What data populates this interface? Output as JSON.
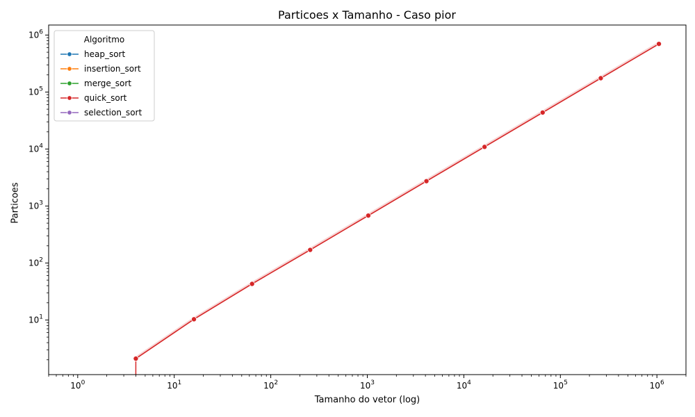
{
  "chart_data": {
    "type": "line",
    "title": "Particoes x Tamanho - Caso pior",
    "xlabel": "Tamanho do vetor (log)",
    "ylabel": "Particoes",
    "xscale": "log",
    "yscale": "log",
    "xlim": [
      0.5,
      2000000
    ],
    "ylim": [
      1.1,
      1500000
    ],
    "xticks": [
      {
        "value": 1,
        "base": "10",
        "exp": "0"
      },
      {
        "value": 10,
        "base": "10",
        "exp": "1"
      },
      {
        "value": 100,
        "base": "10",
        "exp": "2"
      },
      {
        "value": 1000,
        "base": "10",
        "exp": "3"
      },
      {
        "value": 10000,
        "base": "10",
        "exp": "4"
      },
      {
        "value": 100000,
        "base": "10",
        "exp": "5"
      },
      {
        "value": 1000000,
        "base": "10",
        "exp": "6"
      }
    ],
    "yticks": [
      {
        "value": 10,
        "base": "10",
        "exp": "1"
      },
      {
        "value": 100,
        "base": "10",
        "exp": "2"
      },
      {
        "value": 1000,
        "base": "10",
        "exp": "3"
      },
      {
        "value": 10000,
        "base": "10",
        "exp": "4"
      },
      {
        "value": 100000,
        "base": "10",
        "exp": "5"
      },
      {
        "value": 1000000,
        "base": "10",
        "exp": "6"
      }
    ],
    "grid": false,
    "legend": {
      "title": "Algoritmo",
      "position": "top-left"
    },
    "series": [
      {
        "name": "heap_sort",
        "color": "#1f77b4",
        "x": [],
        "y": []
      },
      {
        "name": "insertion_sort",
        "color": "#ff7f0e",
        "x": [],
        "y": []
      },
      {
        "name": "merge_sort",
        "color": "#2ca02c",
        "x": [],
        "y": []
      },
      {
        "name": "quick_sort",
        "color": "#d62728",
        "x": [
          4,
          16,
          64,
          256,
          1024,
          4096,
          16384,
          65536,
          262144,
          1048576
        ],
        "y": [
          2.1,
          10.3,
          43,
          170,
          680,
          2730,
          10900,
          43700,
          175000,
          700000
        ]
      },
      {
        "name": "selection_sort",
        "color": "#9467bd",
        "x": [],
        "y": []
      }
    ]
  }
}
